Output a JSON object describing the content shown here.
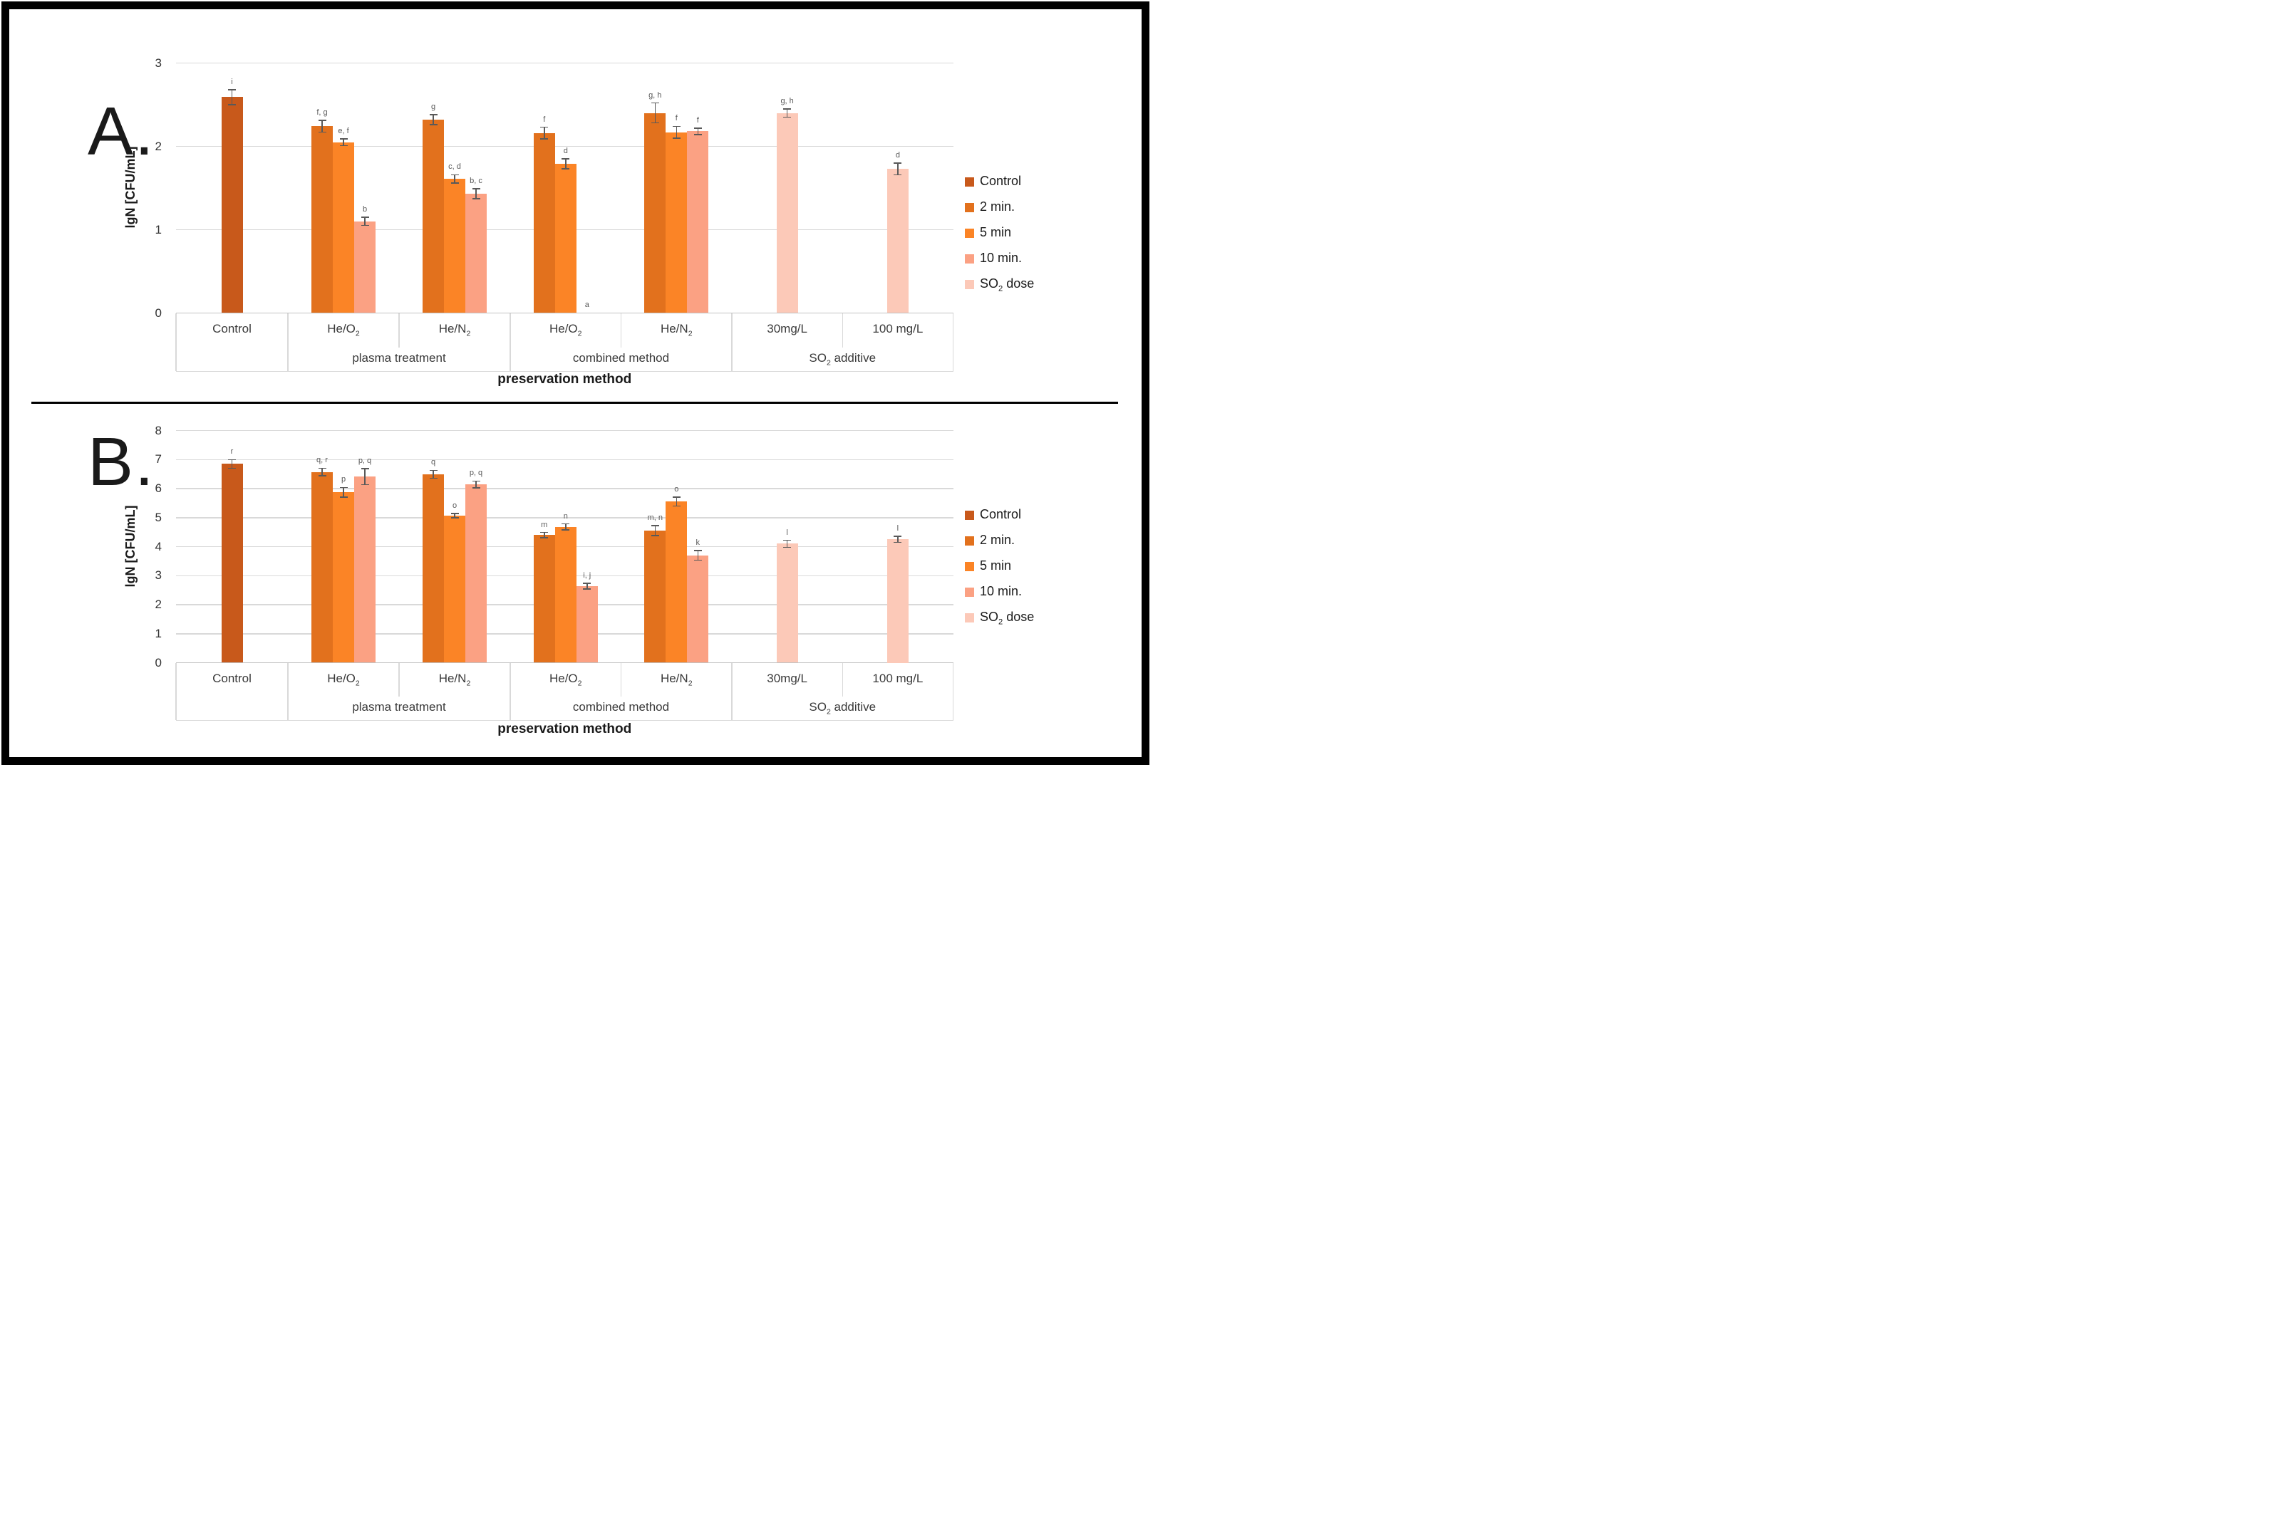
{
  "colors": {
    "Control": "#C8591B",
    "2 min.": "#E2711D",
    "5 min": "#FB8426",
    "10 min.": "#FBA183",
    "SO_2 dose": "#FCC9B8",
    "gridline": "#D9D9D9",
    "axis": "#C2C2C2",
    "error": "#595959",
    "text": "#3A3A3A"
  },
  "legend": {
    "position": "right",
    "entries": [
      {
        "label": "Control"
      },
      {
        "label": "2 min."
      },
      {
        "label": "5 min"
      },
      {
        "label": "10 min."
      },
      {
        "label": "SO_2 dose"
      }
    ]
  },
  "chart_data": [
    {
      "id": "A",
      "type": "bar",
      "panel_label": "A.",
      "title": "",
      "ylabel": "lgN [CFU/mL]",
      "xlabel": "preservation method",
      "ylim": [
        0,
        3
      ],
      "yticks": [
        0,
        1,
        2,
        3
      ],
      "grid": true,
      "legend_position": "right",
      "zones": [
        {
          "label": "",
          "groups": [
            0
          ]
        },
        {
          "label": "plasma treatment",
          "groups": [
            1,
            2
          ]
        },
        {
          "label": "combined method",
          "groups": [
            3,
            4
          ]
        },
        {
          "label": "SO_2 additive",
          "groups": [
            5,
            6
          ]
        }
      ],
      "groups": [
        {
          "category": "Control",
          "bars": [
            {
              "series": "Control",
              "value": 2.59,
              "error": 0.09,
              "letter": "i"
            }
          ]
        },
        {
          "category": "He/O_2",
          "bars": [
            {
              "series": "2 min.",
              "value": 2.24,
              "error": 0.07,
              "letter": "f, g"
            },
            {
              "series": "5 min",
              "value": 2.05,
              "error": 0.04,
              "letter": "e, f"
            },
            {
              "series": "10 min.",
              "value": 1.1,
              "error": 0.05,
              "letter": "b"
            }
          ]
        },
        {
          "category": "He/N_2",
          "bars": [
            {
              "series": "2 min.",
              "value": 2.32,
              "error": 0.06,
              "letter": "g"
            },
            {
              "series": "5 min",
              "value": 1.61,
              "error": 0.05,
              "letter": "c, d"
            },
            {
              "series": "10 min.",
              "value": 1.43,
              "error": 0.06,
              "letter": "b, c"
            }
          ]
        },
        {
          "category": "He/O_2",
          "bars": [
            {
              "series": "2 min.",
              "value": 2.16,
              "error": 0.07,
              "letter": "f"
            },
            {
              "series": "5 min",
              "value": 1.79,
              "error": 0.06,
              "letter": "d"
            },
            {
              "series": "10 min.",
              "value": 0,
              "error": 0,
              "letter": "a"
            }
          ]
        },
        {
          "category": "He/N_2",
          "bars": [
            {
              "series": "2 min.",
              "value": 2.4,
              "error": 0.12,
              "letter": "g, h"
            },
            {
              "series": "5 min",
              "value": 2.17,
              "error": 0.07,
              "letter": "f"
            },
            {
              "series": "10 min.",
              "value": 2.18,
              "error": 0.04,
              "letter": "f"
            }
          ]
        },
        {
          "category": "30mg/L",
          "bars": [
            {
              "series": "SO_2 dose",
              "value": 2.4,
              "error": 0.05,
              "letter": "g, h"
            }
          ]
        },
        {
          "category": "100 mg/L",
          "bars": [
            {
              "series": "SO_2 dose",
              "value": 1.73,
              "error": 0.07,
              "letter": "d"
            }
          ]
        }
      ]
    },
    {
      "id": "B",
      "type": "bar",
      "panel_label": "B.",
      "title": "",
      "ylabel": "lgN [CFU/mL]",
      "xlabel": "preservation method",
      "ylim": [
        0,
        8
      ],
      "yticks": [
        0,
        1,
        2,
        3,
        4,
        5,
        6,
        7,
        8
      ],
      "grid": true,
      "legend_position": "right",
      "zones": [
        {
          "label": "",
          "groups": [
            0
          ]
        },
        {
          "label": "plasma treatment",
          "groups": [
            1,
            2
          ]
        },
        {
          "label": "combined method",
          "groups": [
            3,
            4
          ]
        },
        {
          "label": "SO_2 additive",
          "groups": [
            5,
            6
          ]
        }
      ],
      "groups": [
        {
          "category": "Control",
          "bars": [
            {
              "series": "Control",
              "value": 6.85,
              "error": 0.15,
              "letter": "r"
            }
          ]
        },
        {
          "category": "He/O_2",
          "bars": [
            {
              "series": "2 min.",
              "value": 6.57,
              "error": 0.13,
              "letter": "q, r"
            },
            {
              "series": "5 min",
              "value": 5.87,
              "error": 0.17,
              "letter": "p"
            },
            {
              "series": "10 min.",
              "value": 6.41,
              "error": 0.28,
              "letter": "p, q"
            }
          ]
        },
        {
          "category": "He/N_2",
          "bars": [
            {
              "series": "2 min.",
              "value": 6.49,
              "error": 0.14,
              "letter": "q"
            },
            {
              "series": "5 min",
              "value": 5.07,
              "error": 0.07,
              "letter": "o"
            },
            {
              "series": "10 min.",
              "value": 6.14,
              "error": 0.12,
              "letter": "p, q"
            }
          ]
        },
        {
          "category": "He/O_2",
          "bars": [
            {
              "series": "2 min.",
              "value": 4.4,
              "error": 0.09,
              "letter": "m"
            },
            {
              "series": "5 min",
              "value": 4.68,
              "error": 0.1,
              "letter": "n"
            },
            {
              "series": "10 min.",
              "value": 2.64,
              "error": 0.1,
              "letter": "i, j"
            }
          ]
        },
        {
          "category": "He/N_2",
          "bars": [
            {
              "series": "2 min.",
              "value": 4.55,
              "error": 0.17,
              "letter": "m, n"
            },
            {
              "series": "5 min",
              "value": 5.55,
              "error": 0.15,
              "letter": "o"
            },
            {
              "series": "10 min.",
              "value": 3.7,
              "error": 0.17,
              "letter": "k"
            }
          ]
        },
        {
          "category": "30mg/L",
          "bars": [
            {
              "series": "SO_2 dose",
              "value": 4.1,
              "error": 0.12,
              "letter": "l"
            }
          ]
        },
        {
          "category": "100 mg/L",
          "bars": [
            {
              "series": "SO_2 dose",
              "value": 4.25,
              "error": 0.1,
              "letter": "l"
            }
          ]
        }
      ]
    }
  ]
}
